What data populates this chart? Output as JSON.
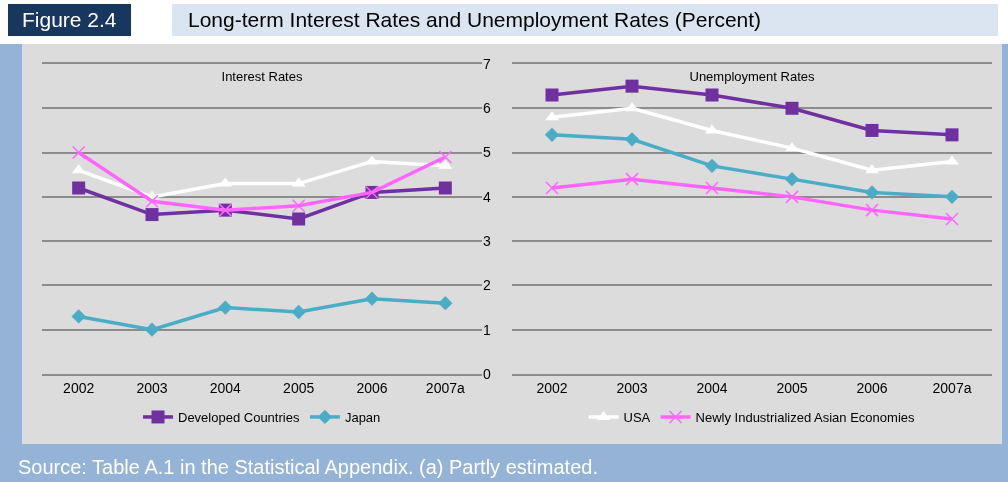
{
  "chart_data": [
    {
      "type": "line",
      "title": "Interest Rates",
      "annotations": [
        "Figure 2.4",
        "Long-term Interest Rates and Unemployment Rates (Percent)"
      ],
      "categories": [
        "2002",
        "2003",
        "2004",
        "2005",
        "2006",
        "2007a"
      ],
      "ylim": [
        0,
        7
      ],
      "yticks": [
        0,
        1,
        2,
        3,
        4,
        5,
        6,
        7
      ],
      "grid": "y",
      "legend": "bottom",
      "series": [
        {
          "name": "Developed Countries",
          "color": "#7030a0",
          "marker": "square",
          "values": [
            4.2,
            3.6,
            3.7,
            3.5,
            4.1,
            4.2
          ]
        },
        {
          "name": "Japan",
          "color": "#4bacc6",
          "marker": "diamond",
          "values": [
            1.3,
            1.0,
            1.5,
            1.4,
            1.7,
            1.6
          ]
        },
        {
          "color": "#ffffff",
          "marker": "triangle",
          "values": [
            4.6,
            4.0,
            4.3,
            4.3,
            4.8,
            4.7
          ]
        },
        {
          "color": "#ff66ff",
          "marker": "cross",
          "values": [
            5.0,
            3.9,
            3.7,
            3.8,
            4.1,
            4.9
          ]
        }
      ]
    },
    {
      "type": "line",
      "title": "Unemployment Rates",
      "annotations": [
        "Source: Table A.1 in the Statistical Appendix. (a) Partly estimated."
      ],
      "categories": [
        "2002",
        "2003",
        "2004",
        "2005",
        "2006",
        "2007a"
      ],
      "ylim": [
        0,
        7
      ],
      "yticks": [
        0,
        1,
        2,
        3,
        4,
        5,
        6,
        7
      ],
      "tick_labels": "x",
      "grid": "y",
      "legend": "bottom",
      "series": [
        {
          "color": "#7030a0",
          "marker": "square",
          "values": [
            6.3,
            6.5,
            6.3,
            6.0,
            5.5,
            5.4
          ]
        },
        {
          "color": "#4bacc6",
          "marker": "diamond",
          "values": [
            5.4,
            5.3,
            4.7,
            4.4,
            4.1,
            4.0
          ]
        },
        {
          "name": "USA",
          "color": "#ffffff",
          "marker": "triangle",
          "values": [
            5.8,
            6.0,
            5.5,
            5.1,
            4.6,
            4.8
          ]
        },
        {
          "name": "Newly Industrialized Asian Economies",
          "color": "#ff66ff",
          "marker": "cross",
          "values": [
            4.2,
            4.4,
            4.2,
            4.0,
            3.7,
            3.5
          ]
        }
      ]
    }
  ]
}
